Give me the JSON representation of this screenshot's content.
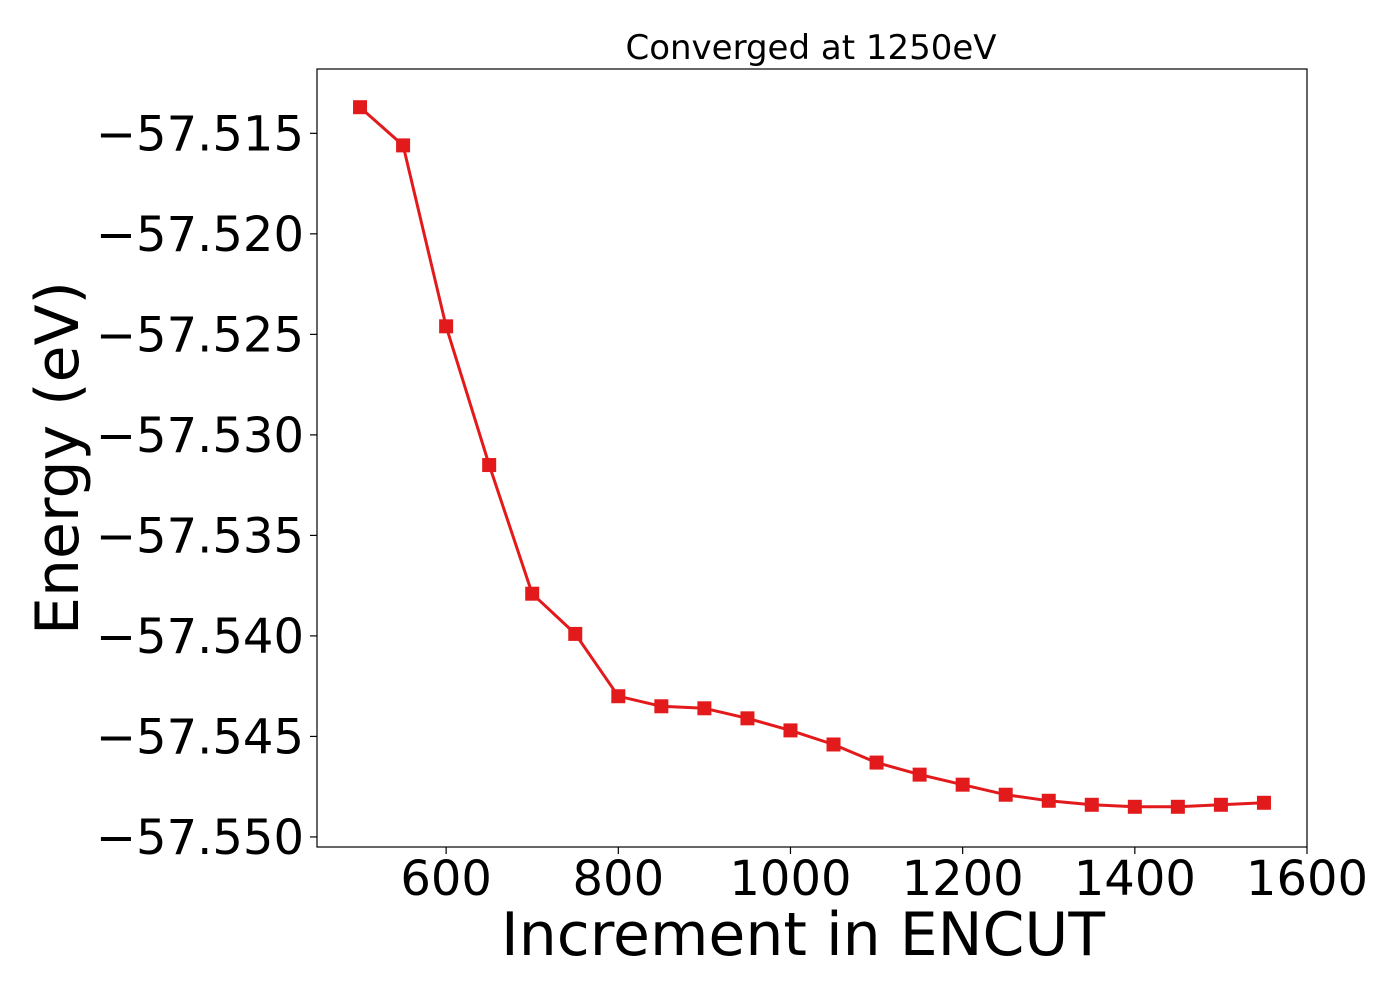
{
  "chart_data": {
    "type": "line",
    "title": "Converged at 1250eV",
    "xlabel": "Increment in ENCUT",
    "ylabel": "Energy (eV)",
    "xlim": [
      450,
      1600
    ],
    "ylim": [
      -57.5505,
      -57.5118
    ],
    "xticks": [
      600,
      800,
      1000,
      1200,
      1400,
      1600
    ],
    "yticks": [
      -57.515,
      -57.52,
      -57.525,
      -57.53,
      -57.535,
      -57.54,
      -57.545,
      -57.55
    ],
    "ytick_labels": [
      "−57.515",
      "−57.520",
      "−57.525",
      "−57.530",
      "−57.535",
      "−57.540",
      "−57.545",
      "−57.550"
    ],
    "grid": false,
    "series": [
      {
        "color": "#e31a1c",
        "marker": "square",
        "x": [
          500,
          550,
          600,
          650,
          700,
          750,
          800,
          850,
          900,
          950,
          1000,
          1050,
          1100,
          1150,
          1200,
          1250,
          1300,
          1350,
          1400,
          1450,
          1500,
          1550
        ],
        "y": [
          -57.5137,
          -57.5156,
          -57.5246,
          -57.5315,
          -57.5379,
          -57.5399,
          -57.543,
          -57.5435,
          -57.5436,
          -57.5441,
          -57.5447,
          -57.5454,
          -57.5463,
          -57.5469,
          -57.5474,
          -57.5479,
          -57.5482,
          -57.5484,
          -57.5485,
          -57.5485,
          -57.5484,
          -57.5483
        ]
      }
    ]
  }
}
